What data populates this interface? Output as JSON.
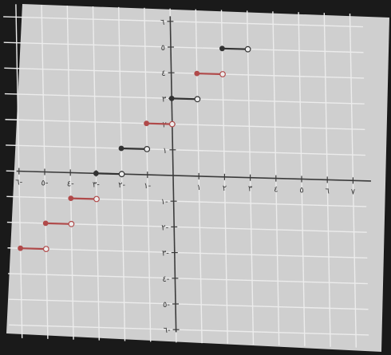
{
  "chart_data": {
    "type": "line",
    "subtype": "step-function",
    "title": "",
    "xlabel": "",
    "ylabel": "",
    "xlim": [
      -6,
      7
    ],
    "ylim": [
      -6,
      6
    ],
    "grid": true,
    "x_tick_labels": [
      {
        "x": -6,
        "label": "٦-"
      },
      {
        "x": -5,
        "label": "٥-"
      },
      {
        "x": -4,
        "label": "٤-"
      },
      {
        "x": -3,
        "label": "٣-"
      },
      {
        "x": -2,
        "label": "٢-"
      },
      {
        "x": -1,
        "label": "١-"
      },
      {
        "x": 1,
        "label": "١"
      },
      {
        "x": 2,
        "label": "٢"
      },
      {
        "x": 3,
        "label": "٣"
      },
      {
        "x": 4,
        "label": "٤"
      },
      {
        "x": 5,
        "label": "٥"
      },
      {
        "x": 6,
        "label": "٦"
      },
      {
        "x": 7,
        "label": "٧"
      }
    ],
    "y_tick_labels": [
      {
        "y": 6,
        "label": "٦"
      },
      {
        "y": 5,
        "label": "٥"
      },
      {
        "y": 4,
        "label": "٤"
      },
      {
        "y": 3,
        "label": "٣"
      },
      {
        "y": 2,
        "label": "٢"
      },
      {
        "y": 1,
        "label": "١"
      },
      {
        "y": -1,
        "label": "١-"
      },
      {
        "y": -2,
        "label": "٢-"
      },
      {
        "y": -3,
        "label": "٣-"
      },
      {
        "y": -4,
        "label": "٤-"
      },
      {
        "y": -5,
        "label": "٥-"
      },
      {
        "y": -6,
        "label": "٦-"
      }
    ],
    "segments": [
      {
        "x_start": -6,
        "x_end": -5,
        "y": -3,
        "closed": "left",
        "color": "#b04a4a"
      },
      {
        "x_start": -5,
        "x_end": -4,
        "y": -2,
        "closed": "left",
        "color": "#b04a4a"
      },
      {
        "x_start": -4,
        "x_end": -3,
        "y": -1,
        "closed": "left",
        "color": "#b04a4a"
      },
      {
        "x_start": -3,
        "x_end": -2,
        "y": 0,
        "closed": "left",
        "color": "#333333"
      },
      {
        "x_start": -2,
        "x_end": -1,
        "y": 1,
        "closed": "left",
        "color": "#333333"
      },
      {
        "x_start": -1,
        "x_end": 0,
        "y": 2,
        "closed": "left",
        "color": "#b04a4a"
      },
      {
        "x_start": 0,
        "x_end": 1,
        "y": 3,
        "closed": "left",
        "color": "#333333"
      },
      {
        "x_start": 1,
        "x_end": 2,
        "y": 4,
        "closed": "left",
        "color": "#b04a4a"
      },
      {
        "x_start": 2,
        "x_end": 3,
        "y": 5,
        "closed": "left",
        "color": "#333333"
      }
    ],
    "colors": {
      "paper": "#cfcfcf",
      "grid": "#ececec",
      "axis": "#3a3a3a",
      "open_dot_fill": "#eeeeee"
    }
  }
}
